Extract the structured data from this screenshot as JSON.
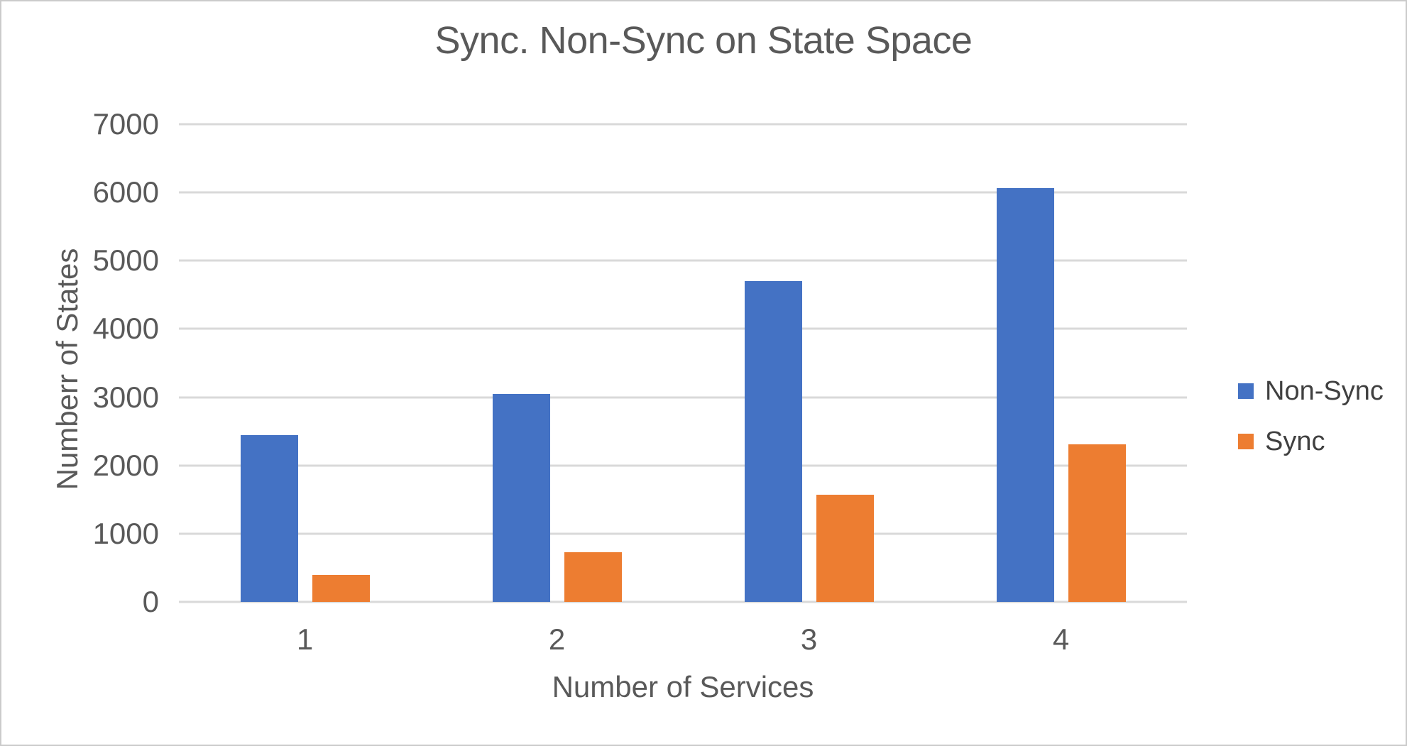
{
  "chart_data": {
    "type": "bar",
    "title": "Sync. Non-Sync on State Space",
    "categories": [
      "1",
      "2",
      "3",
      "4"
    ],
    "series": [
      {
        "name": "Non-Sync",
        "color": "#4472C4",
        "values": [
          2440,
          3050,
          4700,
          6060
        ]
      },
      {
        "name": "Sync",
        "color": "#ED7D31",
        "values": [
          400,
          730,
          1570,
          2310
        ]
      }
    ],
    "xlabel": "Number of Services",
    "ylabel": "Numberr of States",
    "ylim": [
      0,
      7000
    ],
    "yticks": [
      0,
      1000,
      2000,
      3000,
      4000,
      5000,
      6000,
      7000
    ],
    "grid": true,
    "legend_position": "right",
    "gridline_color": "#D9D9D9",
    "text_color": "#595959",
    "legend_text_color": "#404040",
    "frame_color": "#CBCBCB"
  }
}
